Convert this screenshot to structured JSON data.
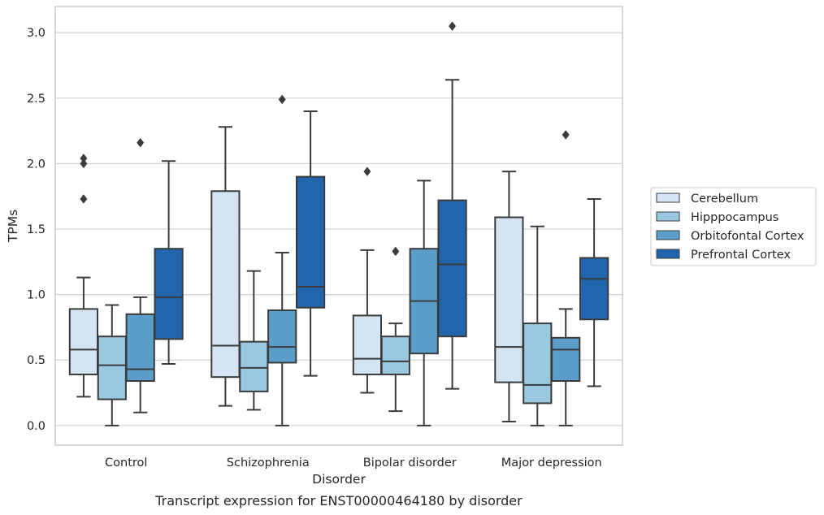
{
  "chart_data": {
    "type": "box",
    "caption": "Transcript expression for ENST00000464180 by disorder",
    "xlabel": "Disorder",
    "ylabel": "TPMs",
    "ylim": [
      -0.15,
      3.2
    ],
    "yticks": [
      "0.0",
      "0.5",
      "1.0",
      "1.5",
      "2.0",
      "2.5",
      "3.0"
    ],
    "grid": true,
    "legend_position": "right",
    "categories": [
      "Control",
      "Schizophrenia",
      "Bipolar disorder",
      "Major depression"
    ],
    "series": [
      {
        "name": "Cerebellum",
        "color": "#d4e4f2",
        "boxes": [
          {
            "whislo": 0.22,
            "q1": 0.39,
            "med": 0.58,
            "q3": 0.89,
            "whishi": 1.13,
            "fliers": [
              1.73,
              2.0,
              2.04
            ]
          },
          {
            "whislo": 0.15,
            "q1": 0.37,
            "med": 0.61,
            "q3": 1.79,
            "whishi": 2.28,
            "fliers": []
          },
          {
            "whislo": 0.25,
            "q1": 0.39,
            "med": 0.51,
            "q3": 0.84,
            "whishi": 1.34,
            "fliers": [
              1.94
            ]
          },
          {
            "whislo": 0.03,
            "q1": 0.33,
            "med": 0.6,
            "q3": 1.59,
            "whishi": 1.94,
            "fliers": []
          }
        ]
      },
      {
        "name": "Hipppocampus",
        "color": "#9ac8e0",
        "boxes": [
          {
            "whislo": 0.0,
            "q1": 0.2,
            "med": 0.46,
            "q3": 0.68,
            "whishi": 0.92,
            "fliers": []
          },
          {
            "whislo": 0.12,
            "q1": 0.26,
            "med": 0.44,
            "q3": 0.64,
            "whishi": 1.18,
            "fliers": []
          },
          {
            "whislo": 0.11,
            "q1": 0.39,
            "med": 0.49,
            "q3": 0.68,
            "whishi": 0.78,
            "fliers": [
              1.33
            ]
          },
          {
            "whislo": 0.0,
            "q1": 0.17,
            "med": 0.31,
            "q3": 0.78,
            "whishi": 1.52,
            "fliers": []
          }
        ]
      },
      {
        "name": "Orbitofontal Cortex",
        "color": "#5a9ec9",
        "boxes": [
          {
            "whislo": 0.1,
            "q1": 0.34,
            "med": 0.43,
            "q3": 0.85,
            "whishi": 0.98,
            "fliers": [
              2.16
            ]
          },
          {
            "whislo": 0.0,
            "q1": 0.48,
            "med": 0.6,
            "q3": 0.88,
            "whishi": 1.32,
            "fliers": [
              2.49
            ]
          },
          {
            "whislo": 0.0,
            "q1": 0.55,
            "med": 0.95,
            "q3": 1.35,
            "whishi": 1.87,
            "fliers": []
          },
          {
            "whislo": 0.0,
            "q1": 0.34,
            "med": 0.58,
            "q3": 0.67,
            "whishi": 0.89,
            "fliers": [
              2.22
            ]
          }
        ]
      },
      {
        "name": "Prefrontal Cortex",
        "color": "#2166ac",
        "boxes": [
          {
            "whislo": 0.47,
            "q1": 0.66,
            "med": 0.98,
            "q3": 1.35,
            "whishi": 2.02,
            "fliers": []
          },
          {
            "whislo": 0.38,
            "q1": 0.9,
            "med": 1.06,
            "q3": 1.9,
            "whishi": 2.4,
            "fliers": []
          },
          {
            "whislo": 0.28,
            "q1": 0.68,
            "med": 1.23,
            "q3": 1.72,
            "whishi": 2.64,
            "fliers": [
              3.05
            ]
          },
          {
            "whislo": 0.3,
            "q1": 0.81,
            "med": 1.12,
            "q3": 1.28,
            "whishi": 1.73,
            "fliers": []
          }
        ]
      }
    ]
  }
}
